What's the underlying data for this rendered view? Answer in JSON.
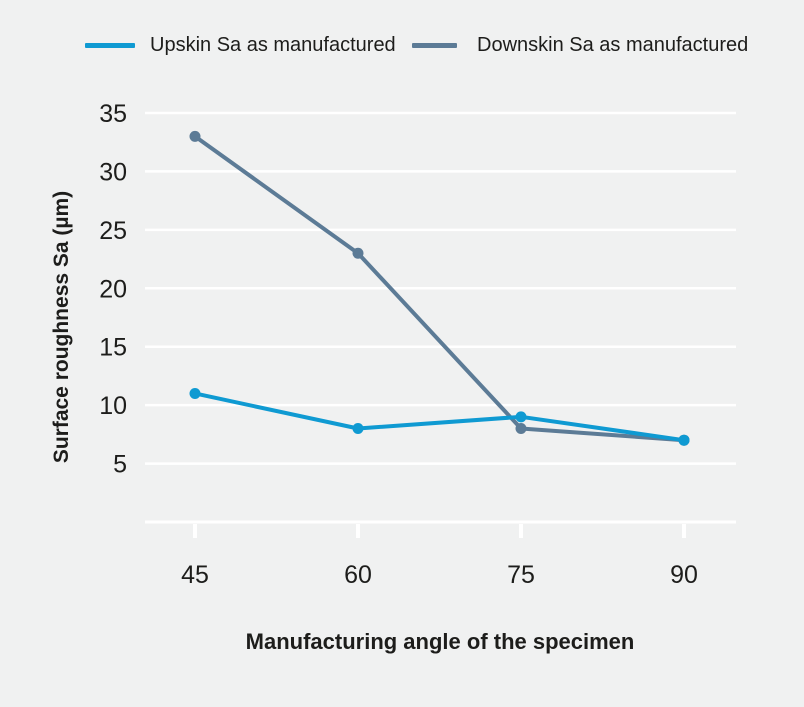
{
  "legend": {
    "items": [
      {
        "label": "Upskin Sa as manufactured",
        "color": "#0f9ad2"
      },
      {
        "label": "Downskin Sa as manufactured",
        "color": "#5c7b96"
      }
    ]
  },
  "axes": {
    "y_title": "Surface roughness Sa (µm)",
    "x_title": "Manufacturing angle of the specimen"
  },
  "chart_data": {
    "type": "line",
    "x": [
      45,
      60,
      75,
      90
    ],
    "x_tick_labels": [
      "45",
      "60",
      "75",
      "90"
    ],
    "y_ticks": [
      5,
      10,
      15,
      20,
      25,
      30,
      35
    ],
    "ylim": [
      0,
      35
    ],
    "series": [
      {
        "name": "Upskin Sa as manufactured",
        "color": "#0f9ad2",
        "values": [
          11,
          8,
          9,
          7
        ]
      },
      {
        "name": "Downskin Sa as manufactured",
        "color": "#5c7b96",
        "values": [
          33,
          23,
          8,
          7
        ]
      }
    ],
    "title": "",
    "xlabel": "Manufacturing angle of the specimen",
    "ylabel": "Surface roughness Sa (µm)",
    "grid": "horizontal",
    "legend_position": "top"
  },
  "colors": {
    "background": "#f0f1f1",
    "grid": "#ffffff",
    "axis": "#ffffff",
    "text": "#1d1d1b"
  }
}
